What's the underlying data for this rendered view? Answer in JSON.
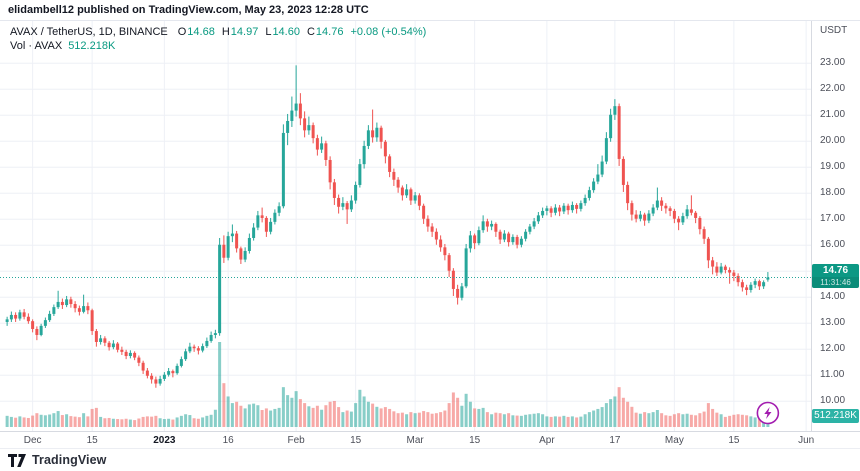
{
  "attribution": {
    "text": "elidambell12 published on TradingView.com, May 23, 2023 12:28 UTC"
  },
  "legend": {
    "symbol": "AVAX / TetherUS, 1D, BINANCE",
    "ohlc": [
      {
        "label": "O",
        "value": "14.68"
      },
      {
        "label": "H",
        "value": "14.97"
      },
      {
        "label": "L",
        "value": "14.60"
      },
      {
        "label": "C",
        "value": "14.76"
      }
    ],
    "change": "+0.08 (+0.54%)",
    "vol_label": "Vol · AVAX",
    "vol_value": "512.218K"
  },
  "price_axis": {
    "currency": "USDT",
    "labels": [
      "23.00",
      "22.00",
      "21.00",
      "20.00",
      "19.00",
      "18.00",
      "17.00",
      "16.00",
      "15.00",
      "14.00",
      "13.00",
      "12.00",
      "11.00",
      "10.00"
    ],
    "last_price_badge": {
      "price": "14.76",
      "countdown": "11:31:46"
    },
    "volume_badge": "512.218K"
  },
  "time_axis": {
    "ticks": [
      {
        "label": "Dec",
        "i": 6,
        "strong": false
      },
      {
        "label": "15",
        "i": 20,
        "strong": false
      },
      {
        "label": "2023",
        "i": 37,
        "strong": true
      },
      {
        "label": "16",
        "i": 52,
        "strong": false
      },
      {
        "label": "Feb",
        "i": 68,
        "strong": false
      },
      {
        "label": "15",
        "i": 82,
        "strong": false
      },
      {
        "label": "Mar",
        "i": 96,
        "strong": false
      },
      {
        "label": "15",
        "i": 110,
        "strong": false
      },
      {
        "label": "Apr",
        "i": 127,
        "strong": false
      },
      {
        "label": "17",
        "i": 143,
        "strong": false
      },
      {
        "label": "May",
        "i": 157,
        "strong": false
      },
      {
        "label": "15",
        "i": 171,
        "strong": false
      },
      {
        "label": "Jun",
        "i": 188,
        "strong": false
      }
    ]
  },
  "footer": {
    "brand": "TradingView"
  },
  "colors": {
    "up": "#26a69a",
    "down": "#ef5350",
    "vol_up": "rgba(38,166,154,0.55)",
    "vol_down": "rgba(239,83,80,0.5)",
    "accent": "#089981",
    "grid": "#eef0f6",
    "dotted_line": "#26a69a",
    "marker": "#a21caf",
    "badge_price_bg": "#0c9884",
    "badge_vol_bg": "#2cb3a6"
  },
  "chart_data": {
    "type": "candlestick",
    "title": "AVAX / TetherUS daily candles with volume",
    "x_range": [
      "Nov 25 2022",
      "May 23 2023"
    ],
    "price_axis_range": [
      10,
      23
    ],
    "last_price": 14.76,
    "volume_max_k": 3200,
    "marker": {
      "name": "lightning-publish-marker",
      "bar_index": 179,
      "y": 413
    },
    "candles_format": [
      "open",
      "high",
      "low",
      "close",
      "volume_k"
    ],
    "candles": [
      [
        13.05,
        13.25,
        12.9,
        13.15,
        420
      ],
      [
        13.15,
        13.45,
        13.05,
        13.32,
        380
      ],
      [
        13.32,
        13.42,
        13.05,
        13.18,
        350
      ],
      [
        13.18,
        13.52,
        13.1,
        13.42,
        400
      ],
      [
        13.42,
        13.55,
        13.15,
        13.25,
        360
      ],
      [
        13.25,
        13.38,
        12.98,
        13.08,
        340
      ],
      [
        13.08,
        13.15,
        12.65,
        12.78,
        430
      ],
      [
        12.78,
        12.88,
        12.35,
        12.55,
        520
      ],
      [
        12.55,
        12.98,
        12.5,
        12.9,
        460
      ],
      [
        12.9,
        13.22,
        12.82,
        13.12,
        440
      ],
      [
        13.12,
        13.48,
        13.05,
        13.36,
        470
      ],
      [
        13.36,
        13.72,
        13.28,
        13.62,
        520
      ],
      [
        13.62,
        14.25,
        13.55,
        13.82,
        600
      ],
      [
        13.82,
        13.95,
        13.55,
        13.7,
        450
      ],
      [
        13.7,
        14.05,
        13.62,
        13.92,
        480
      ],
      [
        13.92,
        14.02,
        13.6,
        13.74,
        410
      ],
      [
        13.74,
        13.85,
        13.42,
        13.58,
        390
      ],
      [
        13.58,
        13.68,
        13.3,
        13.44,
        370
      ],
      [
        13.44,
        14.1,
        13.38,
        13.66,
        520
      ],
      [
        13.66,
        13.8,
        13.35,
        13.5,
        400
      ],
      [
        13.5,
        13.56,
        12.55,
        12.7,
        680
      ],
      [
        12.7,
        12.78,
        12.1,
        12.28,
        720
      ],
      [
        12.28,
        12.55,
        12.18,
        12.42,
        380
      ],
      [
        12.42,
        12.5,
        12.12,
        12.25,
        330
      ],
      [
        12.25,
        12.32,
        11.95,
        12.08,
        340
      ],
      [
        12.08,
        12.35,
        12.0,
        12.22,
        310
      ],
      [
        12.22,
        12.28,
        11.88,
        11.98,
        300
      ],
      [
        11.98,
        12.1,
        11.78,
        11.9,
        290
      ],
      [
        11.9,
        11.98,
        11.62,
        11.74,
        310
      ],
      [
        11.74,
        11.96,
        11.65,
        11.86,
        280
      ],
      [
        11.86,
        11.92,
        11.58,
        11.68,
        260
      ],
      [
        11.68,
        11.76,
        11.35,
        11.48,
        320
      ],
      [
        11.48,
        11.56,
        11.05,
        11.18,
        380
      ],
      [
        11.18,
        11.28,
        10.88,
        10.98,
        400
      ],
      [
        10.98,
        11.08,
        10.68,
        10.84,
        390
      ],
      [
        10.84,
        10.95,
        10.52,
        10.68,
        420
      ],
      [
        10.68,
        10.98,
        10.6,
        10.86,
        330
      ],
      [
        10.86,
        11.12,
        10.78,
        11.02,
        300
      ],
      [
        11.02,
        11.28,
        10.95,
        11.16,
        310
      ],
      [
        11.16,
        11.22,
        10.92,
        11.08,
        280
      ],
      [
        11.08,
        11.45,
        11.02,
        11.36,
        360
      ],
      [
        11.36,
        11.72,
        11.3,
        11.62,
        420
      ],
      [
        11.62,
        12.02,
        11.55,
        11.92,
        480
      ],
      [
        11.92,
        12.25,
        11.85,
        12.1,
        450
      ],
      [
        12.1,
        12.18,
        11.9,
        12.04,
        330
      ],
      [
        12.04,
        12.12,
        11.8,
        11.95,
        310
      ],
      [
        11.95,
        12.22,
        11.88,
        12.12,
        360
      ],
      [
        12.12,
        12.45,
        12.05,
        12.32,
        420
      ],
      [
        12.32,
        12.68,
        12.25,
        12.55,
        460
      ],
      [
        12.55,
        12.75,
        12.42,
        12.62,
        650
      ],
      [
        12.62,
        16.28,
        12.52,
        16.02,
        3200
      ],
      [
        16.02,
        16.38,
        15.32,
        15.52,
        1650
      ],
      [
        15.52,
        16.52,
        15.42,
        16.35,
        1150
      ],
      [
        16.35,
        16.8,
        16.12,
        16.45,
        900
      ],
      [
        16.45,
        16.55,
        15.72,
        15.88,
        950
      ],
      [
        15.88,
        15.95,
        15.28,
        15.45,
        800
      ],
      [
        15.45,
        15.92,
        15.35,
        15.78,
        700
      ],
      [
        15.78,
        16.45,
        15.68,
        16.28,
        850
      ],
      [
        16.28,
        16.85,
        16.18,
        16.68,
        880
      ],
      [
        16.68,
        17.32,
        16.58,
        17.15,
        820
      ],
      [
        17.15,
        17.45,
        16.88,
        17.05,
        640
      ],
      [
        17.05,
        17.12,
        16.32,
        16.52,
        700
      ],
      [
        16.52,
        17.05,
        16.42,
        16.9,
        620
      ],
      [
        16.9,
        17.38,
        16.8,
        17.25,
        680
      ],
      [
        17.25,
        17.65,
        17.12,
        17.5,
        720
      ],
      [
        17.5,
        20.65,
        17.42,
        20.32,
        1500
      ],
      [
        20.32,
        21.05,
        19.85,
        20.78,
        1200
      ],
      [
        20.78,
        21.72,
        20.55,
        21.18,
        1100
      ],
      [
        21.18,
        22.92,
        20.95,
        21.45,
        1350
      ],
      [
        21.45,
        21.85,
        20.62,
        20.88,
        1050
      ],
      [
        20.88,
        21.15,
        20.15,
        20.42,
        900
      ],
      [
        20.42,
        20.95,
        20.25,
        20.62,
        780
      ],
      [
        20.62,
        20.72,
        19.92,
        20.12,
        720
      ],
      [
        20.12,
        20.25,
        19.45,
        19.68,
        800
      ],
      [
        19.68,
        20.18,
        19.55,
        19.92,
        650
      ],
      [
        19.92,
        20.02,
        19.05,
        19.28,
        820
      ],
      [
        19.28,
        19.42,
        18.15,
        18.42,
        950
      ],
      [
        18.42,
        18.55,
        17.55,
        17.82,
        980
      ],
      [
        17.82,
        17.95,
        17.22,
        17.48,
        750
      ],
      [
        17.48,
        17.85,
        17.35,
        17.62,
        560
      ],
      [
        17.62,
        17.7,
        16.82,
        17.38,
        620
      ],
      [
        17.38,
        17.92,
        17.28,
        17.72,
        580
      ],
      [
        17.72,
        18.45,
        17.6,
        18.32,
        900
      ],
      [
        18.32,
        19.32,
        18.22,
        19.12,
        1400
      ],
      [
        19.12,
        20.02,
        18.95,
        19.82,
        1150
      ],
      [
        19.82,
        20.62,
        19.7,
        20.42,
        950
      ],
      [
        20.42,
        21.22,
        19.95,
        20.15,
        880
      ],
      [
        20.15,
        20.72,
        19.98,
        20.52,
        760
      ],
      [
        20.52,
        20.6,
        19.72,
        19.98,
        700
      ],
      [
        19.98,
        20.05,
        19.15,
        19.42,
        750
      ],
      [
        19.42,
        19.5,
        18.62,
        18.82,
        680
      ],
      [
        18.82,
        18.95,
        18.28,
        18.52,
        590
      ],
      [
        18.52,
        18.62,
        18.02,
        18.22,
        520
      ],
      [
        18.22,
        18.3,
        17.72,
        17.92,
        540
      ],
      [
        17.92,
        18.35,
        17.82,
        18.15,
        480
      ],
      [
        18.15,
        18.22,
        17.55,
        17.72,
        560
      ],
      [
        17.72,
        18.05,
        17.6,
        17.92,
        520
      ],
      [
        17.92,
        18.0,
        17.35,
        17.52,
        540
      ],
      [
        17.52,
        17.6,
        16.82,
        17.02,
        600
      ],
      [
        17.02,
        17.15,
        16.52,
        16.72,
        560
      ],
      [
        16.72,
        16.85,
        16.32,
        16.52,
        500
      ],
      [
        16.52,
        16.65,
        16.02,
        16.22,
        520
      ],
      [
        16.22,
        16.38,
        15.75,
        15.92,
        560
      ],
      [
        15.92,
        16.05,
        15.42,
        15.62,
        620
      ],
      [
        15.62,
        15.7,
        14.78,
        15.02,
        900
      ],
      [
        15.02,
        15.12,
        14.05,
        14.32,
        1300
      ],
      [
        14.32,
        14.48,
        13.72,
        13.98,
        1100
      ],
      [
        13.98,
        14.55,
        13.88,
        14.42,
        800
      ],
      [
        14.42,
        16.05,
        14.35,
        15.88,
        1250
      ],
      [
        15.88,
        16.55,
        15.72,
        16.38,
        950
      ],
      [
        16.38,
        16.45,
        15.85,
        16.08,
        700
      ],
      [
        16.08,
        16.72,
        16.0,
        16.58,
        680
      ],
      [
        16.58,
        17.15,
        16.48,
        16.92,
        720
      ],
      [
        16.92,
        17.02,
        16.52,
        16.72,
        560
      ],
      [
        16.72,
        16.95,
        16.58,
        16.82,
        480
      ],
      [
        16.82,
        16.88,
        16.32,
        16.52,
        540
      ],
      [
        16.52,
        16.6,
        16.05,
        16.22,
        520
      ],
      [
        16.22,
        16.58,
        16.12,
        16.45,
        480
      ],
      [
        16.45,
        16.52,
        15.95,
        16.12,
        520
      ],
      [
        16.12,
        16.42,
        16.02,
        16.32,
        440
      ],
      [
        16.32,
        16.4,
        15.88,
        16.02,
        430
      ],
      [
        16.02,
        16.35,
        15.92,
        16.25,
        420
      ],
      [
        16.25,
        16.62,
        16.15,
        16.52,
        460
      ],
      [
        16.52,
        16.82,
        16.42,
        16.72,
        480
      ],
      [
        16.72,
        17.05,
        16.62,
        16.92,
        500
      ],
      [
        16.92,
        17.28,
        16.82,
        17.15,
        520
      ],
      [
        17.15,
        17.45,
        17.05,
        17.32,
        480
      ],
      [
        17.32,
        17.52,
        17.15,
        17.42,
        400
      ],
      [
        17.42,
        17.5,
        17.08,
        17.25,
        380
      ],
      [
        17.25,
        17.58,
        17.15,
        17.45,
        400
      ],
      [
        17.45,
        17.55,
        17.12,
        17.3,
        390
      ],
      [
        17.3,
        17.62,
        17.2,
        17.52,
        420
      ],
      [
        17.52,
        17.6,
        17.18,
        17.35,
        380
      ],
      [
        17.35,
        17.68,
        17.25,
        17.55,
        400
      ],
      [
        17.55,
        17.62,
        17.22,
        17.4,
        360
      ],
      [
        17.4,
        17.72,
        17.3,
        17.62,
        390
      ],
      [
        17.62,
        17.95,
        17.52,
        17.82,
        480
      ],
      [
        17.82,
        18.25,
        17.72,
        18.12,
        560
      ],
      [
        18.12,
        18.58,
        18.02,
        18.45,
        620
      ],
      [
        18.45,
        19.12,
        18.35,
        18.72,
        680
      ],
      [
        18.72,
        19.45,
        18.62,
        19.22,
        750
      ],
      [
        19.22,
        20.35,
        19.12,
        20.12,
        900
      ],
      [
        20.12,
        21.25,
        19.98,
        21.02,
        1050
      ],
      [
        21.02,
        21.62,
        20.82,
        21.35,
        1150
      ],
      [
        21.35,
        21.45,
        19.05,
        19.32,
        1500
      ],
      [
        19.32,
        19.42,
        18.05,
        18.32,
        1100
      ],
      [
        18.32,
        18.45,
        17.35,
        17.62,
        950
      ],
      [
        17.62,
        17.72,
        16.95,
        17.18,
        760
      ],
      [
        17.18,
        17.35,
        16.88,
        17.02,
        540
      ],
      [
        17.02,
        17.32,
        16.92,
        17.18,
        500
      ],
      [
        17.18,
        17.25,
        16.75,
        16.95,
        560
      ],
      [
        16.95,
        17.35,
        16.85,
        17.22,
        520
      ],
      [
        17.22,
        17.58,
        17.12,
        17.45,
        560
      ],
      [
        17.45,
        18.22,
        17.35,
        17.72,
        640
      ],
      [
        17.72,
        17.85,
        17.32,
        17.52,
        520
      ],
      [
        17.52,
        17.62,
        17.22,
        17.42,
        440
      ],
      [
        17.42,
        17.5,
        17.12,
        17.32,
        420
      ],
      [
        17.32,
        17.4,
        16.85,
        17.02,
        480
      ],
      [
        17.02,
        17.12,
        16.58,
        16.88,
        520
      ],
      [
        16.88,
        17.25,
        16.78,
        17.12,
        480
      ],
      [
        17.12,
        17.55,
        17.02,
        17.38,
        500
      ],
      [
        17.38,
        17.92,
        17.15,
        17.25,
        460
      ],
      [
        17.25,
        17.32,
        16.85,
        17.05,
        440
      ],
      [
        17.05,
        17.12,
        16.42,
        16.62,
        520
      ],
      [
        16.62,
        16.72,
        16.05,
        16.25,
        580
      ],
      [
        16.25,
        16.32,
        15.12,
        15.42,
        900
      ],
      [
        15.42,
        15.55,
        14.88,
        15.18,
        680
      ],
      [
        15.18,
        15.35,
        14.82,
        14.95,
        540
      ],
      [
        14.95,
        15.32,
        14.88,
        15.18,
        480
      ],
      [
        15.18,
        15.25,
        14.92,
        15.05,
        380
      ],
      [
        15.05,
        15.15,
        14.52,
        14.95,
        420
      ],
      [
        14.95,
        15.05,
        14.62,
        14.82,
        460
      ],
      [
        14.82,
        14.92,
        14.42,
        14.58,
        480
      ],
      [
        14.58,
        14.68,
        14.22,
        14.38,
        460
      ],
      [
        14.38,
        14.48,
        14.08,
        14.28,
        440
      ],
      [
        14.28,
        14.58,
        14.18,
        14.48,
        400
      ],
      [
        14.48,
        14.72,
        14.35,
        14.62,
        360
      ],
      [
        14.62,
        14.68,
        14.28,
        14.42,
        380
      ],
      [
        14.42,
        14.65,
        14.32,
        14.58,
        350
      ],
      [
        14.68,
        14.97,
        14.6,
        14.76,
        512
      ]
    ]
  }
}
